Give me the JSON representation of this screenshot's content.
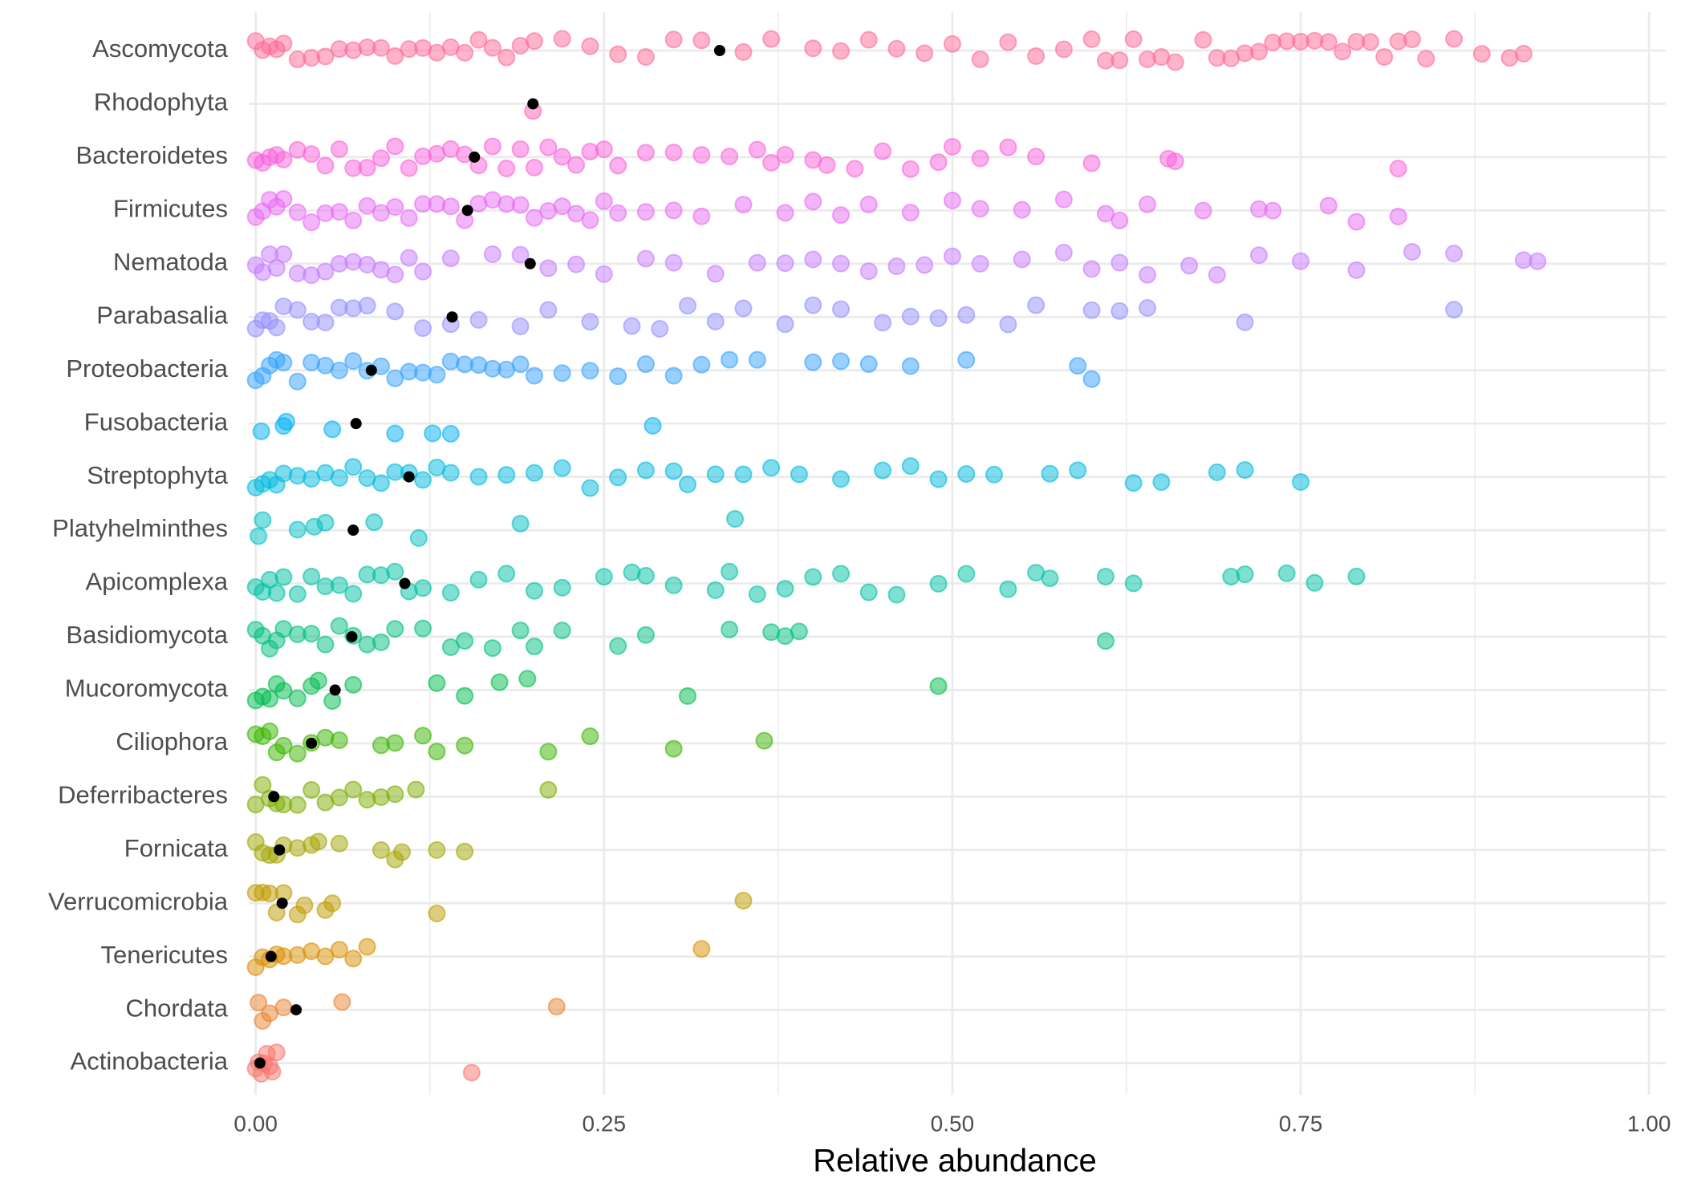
{
  "chart_data": {
    "type": "strip",
    "x_label": "Relative abundance",
    "categories": [
      "Ascomycota",
      "Rhodophyta",
      "Bacteroidetes",
      "Firmicutes",
      "Nematoda",
      "Parabasalia",
      "Proteobacteria",
      "Fusobacteria",
      "Streptophyta",
      "Platyhelminthes",
      "Apicomplexa",
      "Basidiomycota",
      "Mucoromycota",
      "Ciliophora",
      "Deferribacteres",
      "Fornicata",
      "Verrucomicrobia",
      "Tenericutes",
      "Chordata",
      "Actinobacteria"
    ],
    "colors": [
      "#FF6A98",
      "#FF62BC",
      "#FA62DB",
      "#E76BF3",
      "#C77CFF",
      "#9590FF",
      "#35A2FF",
      "#00B0F6",
      "#00BAE0",
      "#00BFC4",
      "#00C1A3",
      "#00BF7D",
      "#00BB4E",
      "#39B600",
      "#7CAE00",
      "#A3A500",
      "#C09B00",
      "#D89000",
      "#EA8331",
      "#F8766D"
    ],
    "values": [
      [
        0,
        0.005,
        0.01,
        0.015,
        0.02,
        0.03,
        0.04,
        0.05,
        0.06,
        0.07,
        0.08,
        0.09,
        0.1,
        0.11,
        0.12,
        0.13,
        0.14,
        0.15,
        0.16,
        0.17,
        0.18,
        0.19,
        0.2,
        0.22,
        0.24,
        0.26,
        0.28,
        0.3,
        0.32,
        0.35,
        0.37,
        0.4,
        0.42,
        0.44,
        0.46,
        0.48,
        0.5,
        0.52,
        0.54,
        0.56,
        0.58,
        0.6,
        0.61,
        0.62,
        0.63,
        0.64,
        0.65,
        0.66,
        0.68,
        0.69,
        0.7,
        0.71,
        0.72,
        0.73,
        0.74,
        0.75,
        0.76,
        0.77,
        0.78,
        0.79,
        0.8,
        0.81,
        0.82,
        0.83,
        0.84,
        0.86,
        0.88,
        0.9,
        0.91
      ],
      [
        0.199
      ],
      [
        0,
        0.005,
        0.01,
        0.015,
        0.02,
        0.03,
        0.04,
        0.05,
        0.06,
        0.07,
        0.08,
        0.09,
        0.1,
        0.11,
        0.12,
        0.13,
        0.14,
        0.15,
        0.16,
        0.17,
        0.18,
        0.19,
        0.2,
        0.21,
        0.22,
        0.23,
        0.24,
        0.25,
        0.26,
        0.28,
        0.3,
        0.32,
        0.34,
        0.36,
        0.37,
        0.38,
        0.4,
        0.41,
        0.43,
        0.45,
        0.47,
        0.49,
        0.5,
        0.52,
        0.54,
        0.56,
        0.6,
        0.655,
        0.66,
        0.82
      ],
      [
        0,
        0.005,
        0.01,
        0.015,
        0.02,
        0.03,
        0.04,
        0.05,
        0.06,
        0.07,
        0.08,
        0.09,
        0.1,
        0.11,
        0.12,
        0.13,
        0.14,
        0.15,
        0.16,
        0.17,
        0.18,
        0.19,
        0.2,
        0.21,
        0.22,
        0.23,
        0.24,
        0.25,
        0.26,
        0.28,
        0.3,
        0.32,
        0.35,
        0.38,
        0.4,
        0.42,
        0.44,
        0.47,
        0.5,
        0.52,
        0.55,
        0.58,
        0.61,
        0.62,
        0.64,
        0.68,
        0.72,
        0.73,
        0.77,
        0.79,
        0.82
      ],
      [
        0,
        0.005,
        0.01,
        0.015,
        0.02,
        0.03,
        0.04,
        0.05,
        0.06,
        0.07,
        0.08,
        0.09,
        0.1,
        0.11,
        0.12,
        0.14,
        0.17,
        0.19,
        0.21,
        0.23,
        0.25,
        0.28,
        0.3,
        0.33,
        0.36,
        0.38,
        0.4,
        0.42,
        0.44,
        0.46,
        0.48,
        0.5,
        0.52,
        0.55,
        0.58,
        0.6,
        0.62,
        0.64,
        0.67,
        0.69,
        0.72,
        0.75,
        0.79,
        0.83,
        0.86,
        0.91,
        0.92
      ],
      [
        0,
        0.005,
        0.01,
        0.015,
        0.02,
        0.03,
        0.04,
        0.05,
        0.06,
        0.07,
        0.08,
        0.1,
        0.12,
        0.14,
        0.16,
        0.19,
        0.21,
        0.24,
        0.27,
        0.29,
        0.31,
        0.33,
        0.35,
        0.38,
        0.4,
        0.42,
        0.45,
        0.47,
        0.49,
        0.51,
        0.54,
        0.56,
        0.6,
        0.62,
        0.64,
        0.71,
        0.86
      ],
      [
        0,
        0.005,
        0.01,
        0.015,
        0.02,
        0.03,
        0.04,
        0.05,
        0.06,
        0.07,
        0.08,
        0.09,
        0.1,
        0.11,
        0.12,
        0.13,
        0.14,
        0.15,
        0.16,
        0.17,
        0.18,
        0.19,
        0.2,
        0.22,
        0.24,
        0.26,
        0.28,
        0.3,
        0.32,
        0.34,
        0.36,
        0.4,
        0.42,
        0.44,
        0.47,
        0.51,
        0.59,
        0.6
      ],
      [
        0.004,
        0.02,
        0.022,
        0.055,
        0.1,
        0.127,
        0.14,
        0.285
      ],
      [
        0,
        0.005,
        0.01,
        0.015,
        0.02,
        0.03,
        0.04,
        0.05,
        0.06,
        0.07,
        0.08,
        0.09,
        0.1,
        0.11,
        0.12,
        0.13,
        0.14,
        0.16,
        0.18,
        0.2,
        0.22,
        0.24,
        0.26,
        0.28,
        0.3,
        0.31,
        0.33,
        0.35,
        0.37,
        0.39,
        0.42,
        0.45,
        0.47,
        0.49,
        0.51,
        0.53,
        0.57,
        0.59,
        0.63,
        0.65,
        0.69,
        0.71,
        0.75
      ],
      [
        0.002,
        0.005,
        0.03,
        0.042,
        0.05,
        0.085,
        0.117,
        0.19,
        0.344
      ],
      [
        0,
        0.005,
        0.01,
        0.015,
        0.02,
        0.03,
        0.04,
        0.05,
        0.06,
        0.07,
        0.08,
        0.09,
        0.1,
        0.11,
        0.12,
        0.14,
        0.16,
        0.18,
        0.2,
        0.22,
        0.25,
        0.27,
        0.28,
        0.3,
        0.33,
        0.34,
        0.36,
        0.38,
        0.4,
        0.42,
        0.44,
        0.46,
        0.49,
        0.51,
        0.54,
        0.56,
        0.57,
        0.61,
        0.63,
        0.7,
        0.71,
        0.74,
        0.76,
        0.79
      ],
      [
        0,
        0.005,
        0.01,
        0.015,
        0.02,
        0.03,
        0.04,
        0.05,
        0.06,
        0.07,
        0.08,
        0.09,
        0.1,
        0.12,
        0.14,
        0.15,
        0.17,
        0.19,
        0.2,
        0.22,
        0.26,
        0.28,
        0.34,
        0.37,
        0.38,
        0.39,
        0.61
      ],
      [
        0,
        0.005,
        0.01,
        0.015,
        0.02,
        0.03,
        0.04,
        0.045,
        0.055,
        0.07,
        0.13,
        0.15,
        0.175,
        0.195,
        0.31,
        0.49
      ],
      [
        0,
        0.005,
        0.01,
        0.015,
        0.02,
        0.03,
        0.04,
        0.05,
        0.06,
        0.09,
        0.1,
        0.12,
        0.13,
        0.15,
        0.21,
        0.24,
        0.3,
        0.365
      ],
      [
        0,
        0.005,
        0.01,
        0.015,
        0.02,
        0.03,
        0.04,
        0.05,
        0.06,
        0.07,
        0.08,
        0.09,
        0.1,
        0.115,
        0.21
      ],
      [
        0,
        0.005,
        0.01,
        0.015,
        0.02,
        0.03,
        0.04,
        0.045,
        0.06,
        0.09,
        0.1,
        0.105,
        0.13,
        0.15
      ],
      [
        0,
        0.005,
        0.01,
        0.015,
        0.02,
        0.03,
        0.035,
        0.05,
        0.055,
        0.13,
        0.35
      ],
      [
        0,
        0.005,
        0.01,
        0.015,
        0.02,
        0.03,
        0.04,
        0.05,
        0.06,
        0.07,
        0.08,
        0.32
      ],
      [
        0.002,
        0.005,
        0.01,
        0.02,
        0.062,
        0.216
      ],
      [
        0,
        0.002,
        0.004,
        0.006,
        0.008,
        0.01,
        0.012,
        0.015,
        0.155
      ]
    ],
    "means": [
      0.333,
      0.199,
      0.157,
      0.152,
      0.197,
      0.141,
      0.083,
      0.072,
      0.11,
      0.07,
      0.107,
      0.069,
      0.057,
      0.04,
      0.013,
      0.017,
      0.019,
      0.011,
      0.029,
      0.003
    ],
    "xlim": [
      -0.005,
      1.012
    ],
    "xticks": [
      {
        "value": 0,
        "label": "0.00"
      },
      {
        "value": 0.25,
        "label": "0.25"
      },
      {
        "value": 0.5,
        "label": "0.50"
      },
      {
        "value": 0.75,
        "label": "0.75"
      },
      {
        "value": 1,
        "label": "1.00"
      }
    ],
    "minor_xticks": [
      0.125,
      0.375,
      0.625,
      0.875
    ],
    "grid": true
  }
}
